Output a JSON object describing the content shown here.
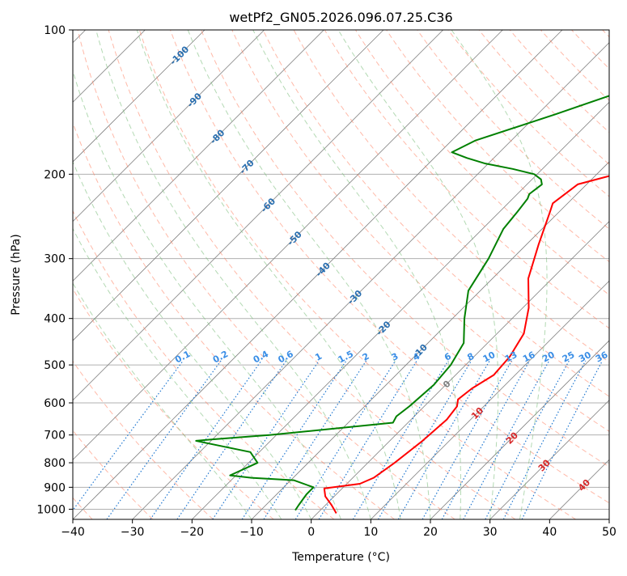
{
  "chart_data": {
    "type": "line",
    "title": "wetPf2_GN05.2026.096.07.25.C36",
    "xlabel": "Temperature (°C)",
    "ylabel": "Pressure (hPa)",
    "xlim": [
      -40,
      50
    ],
    "ylim": [
      1050,
      100
    ],
    "y_scale": "log",
    "skew": "skew-T log-p",
    "grid": true,
    "x_ticks": [
      -40,
      -30,
      -20,
      -10,
      0,
      10,
      20,
      30,
      40,
      50
    ],
    "x_tick_labels": [
      "−40",
      "−30",
      "−20",
      "−10",
      "0",
      "10",
      "20",
      "30",
      "40",
      "50"
    ],
    "y_ticks": [
      1000,
      900,
      800,
      700,
      600,
      500,
      400,
      300,
      200,
      100
    ],
    "y_tick_labels": [
      "1000",
      "900",
      "800",
      "700",
      "600",
      "500",
      "400",
      "300",
      "200",
      "100"
    ],
    "colors": {
      "temperature": "#ff0000",
      "dewpoint": "#008000",
      "isotherm": "#808080",
      "dry_adiabat": "#ff8060",
      "moist_adiabat": "#80c080",
      "mixing_ratio": "#1f77d0",
      "grid": "#b0b0b0"
    },
    "series": [
      {
        "key": "temperature",
        "x": [
          3.2,
          1.0,
          -1.5,
          -3.0,
          2.2,
          3.5,
          4.5,
          5.5,
          6.0,
          5.5,
          4.5,
          5.0,
          6.4,
          6.0,
          4.5,
          1.0,
          -4.0,
          -8.0,
          -11.5,
          -12.5,
          -11.5,
          -6.8,
          -6.0,
          -1.3,
          10.0,
          14.0,
          21.0,
          27.5,
          31.0,
          32.0,
          35.5
        ],
        "y": [
          1020,
          980,
          940,
          905,
          885,
          860,
          800,
          720,
          650,
          610,
          590,
          560,
          525,
          480,
          430,
          380,
          330,
          280,
          240,
          230,
          210,
          200,
          195,
          190,
          170,
          160,
          140,
          120,
          110,
          105,
          100
        ]
      },
      {
        "key": "dewpoint",
        "x": [
          -4.2,
          -4.5,
          -5.0,
          -5.0,
          -9.5,
          -17.0,
          -21.0,
          -18.5,
          -21.5,
          -32.5,
          -30.0,
          -21.0,
          -2.5,
          -3.0,
          -2.5,
          -2.0,
          -2.5,
          -4.0,
          -8.0,
          -12.0,
          -14.0,
          -16.5,
          -17.0,
          -17.5,
          -18.0,
          -17.5,
          -18.5,
          -20.5,
          -25.0,
          -30.5,
          -34.5,
          -38.0,
          -36.0,
          -27.0,
          -20.0,
          -13.5,
          -9.0,
          -3.5
        ],
        "y": [
          1005,
          980,
          930,
          900,
          870,
          860,
          850,
          800,
          760,
          720,
          715,
          700,
          660,
          640,
          610,
          550,
          500,
          450,
          400,
          350,
          300,
          260,
          240,
          225,
          220,
          210,
          205,
          200,
          195,
          190,
          185,
          180,
          170,
          150,
          135,
          120,
          110,
          100
        ]
      }
    ],
    "mixing_ratio_labels": [
      "0.1",
      "0.2",
      "0.4",
      "0.6",
      "1",
      "1.5",
      "2",
      "3",
      "4",
      "6",
      "8",
      "10",
      "13",
      "16",
      "20",
      "25",
      "30",
      "36"
    ],
    "mixing_ratio_values": [
      0.1,
      0.2,
      0.4,
      0.6,
      1,
      1.5,
      2,
      3,
      4,
      6,
      8,
      10,
      13,
      16,
      20,
      25,
      30,
      36
    ],
    "mixing_ratio_label_pressure": 487,
    "isotherm_labels": {
      "values": [
        -100,
        -90,
        -80,
        -70,
        -60,
        -50,
        -40,
        -30,
        -20,
        -10,
        0,
        10,
        20,
        30,
        40
      ],
      "labels": [
        "-100",
        "-90",
        "-80",
        "-70",
        "-60",
        "-50",
        "-40",
        "-30",
        "-20",
        "-10",
        "0",
        "10",
        "20",
        "30",
        "40"
      ],
      "pressures": [
        113,
        140,
        167,
        193,
        232,
        272,
        316,
        361,
        419,
        468,
        548,
        630,
        710,
        810,
        890
      ]
    }
  }
}
